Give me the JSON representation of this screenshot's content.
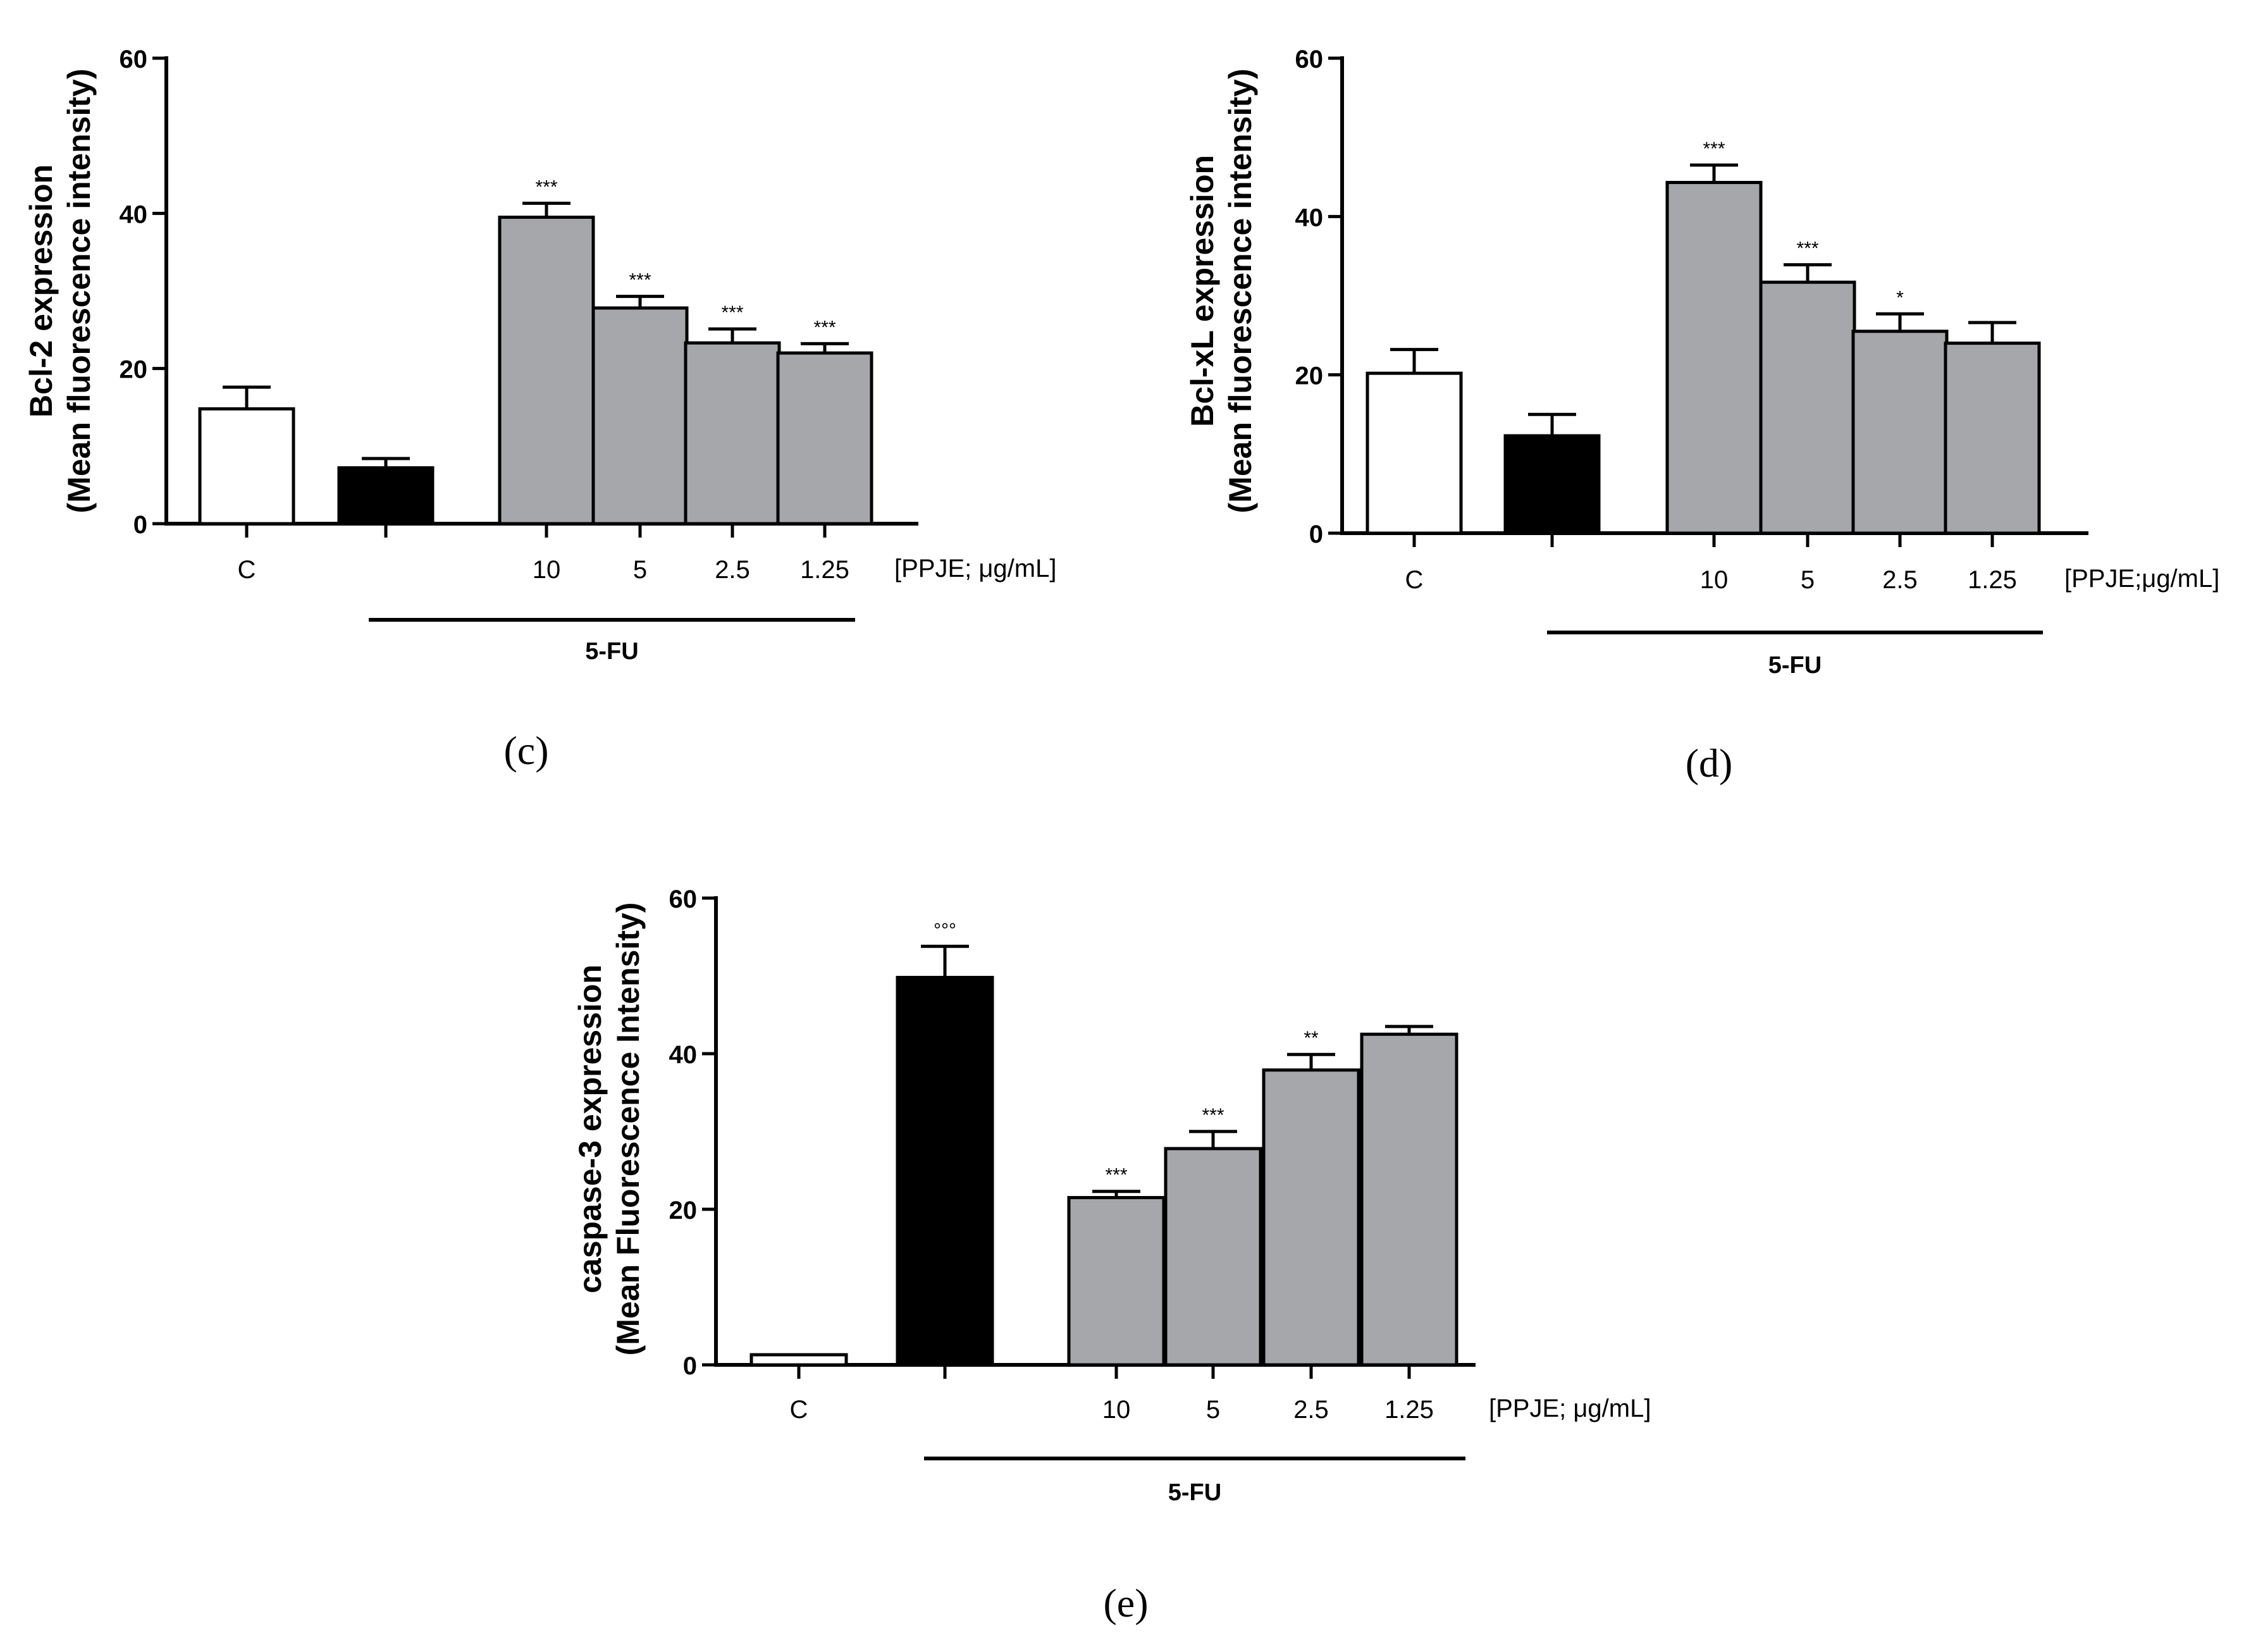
{
  "chart_data": [
    {
      "type": "bar",
      "panel_label": "(c)",
      "ylabel_line1": "Bcl-2 expression",
      "ylabel_line2": "(Mean fluorescence intensity)",
      "ylim": [
        0,
        60
      ],
      "yticks": [
        "0",
        "20",
        "40",
        "60"
      ],
      "unit_label": "[PPJE; μg/mL]",
      "group_label": "5-FU",
      "categories": [
        "C",
        "",
        "10",
        "5",
        "2.5",
        "1.25"
      ],
      "values": [
        14.8,
        7.2,
        39.5,
        27.8,
        23.3,
        22.0
      ],
      "errors": [
        2.8,
        1.2,
        1.8,
        1.5,
        1.8,
        1.2
      ],
      "significance": [
        "",
        "",
        "***",
        "***",
        "***",
        "***"
      ],
      "bar_colors": [
        "#ffffff",
        "#000000",
        "#a6a7ab",
        "#a6a7ab",
        "#a6a7ab",
        "#a6a7ab"
      ]
    },
    {
      "type": "bar",
      "panel_label": "(d)",
      "ylabel_line1": "Bcl-xL expression",
      "ylabel_line2": "(Mean fluorescence intensity)",
      "ylim": [
        0,
        60
      ],
      "yticks": [
        "0",
        "20",
        "40",
        "60"
      ],
      "unit_label": "[PPJE;μg/mL]",
      "group_label": "5-FU",
      "categories": [
        "C",
        "",
        "10",
        "5",
        "2.5",
        "1.25"
      ],
      "values": [
        20.2,
        12.3,
        44.3,
        31.7,
        25.5,
        24.0
      ],
      "errors": [
        3.0,
        2.7,
        2.2,
        2.2,
        2.2,
        2.6
      ],
      "significance": [
        "",
        "",
        "***",
        "***",
        "*",
        ""
      ],
      "bar_colors": [
        "#ffffff",
        "#000000",
        "#a6a7ab",
        "#a6a7ab",
        "#a6a7ab",
        "#a6a7ab"
      ]
    },
    {
      "type": "bar",
      "panel_label": "(e)",
      "ylabel_line1": "caspase-3 expression",
      "ylabel_line2": "(Mean Fluorescence Intensity)",
      "ylim": [
        0,
        60
      ],
      "yticks": [
        "0",
        "20",
        "40",
        "60"
      ],
      "unit_label": "[PPJE; μg/mL]",
      "group_label": "5-FU",
      "categories": [
        "C",
        "",
        "10",
        "5",
        "2.5",
        "1.25"
      ],
      "values": [
        1.3,
        49.8,
        21.5,
        27.8,
        37.9,
        42.5
      ],
      "errors": [
        0,
        4.0,
        0.8,
        2.2,
        2.0,
        1.0
      ],
      "significance": [
        "",
        "°°°",
        "***",
        "***",
        "**",
        ""
      ],
      "bar_colors": [
        "#ffffff",
        "#000000",
        "#a6a7ab",
        "#a6a7ab",
        "#a6a7ab",
        "#a6a7ab"
      ]
    }
  ]
}
